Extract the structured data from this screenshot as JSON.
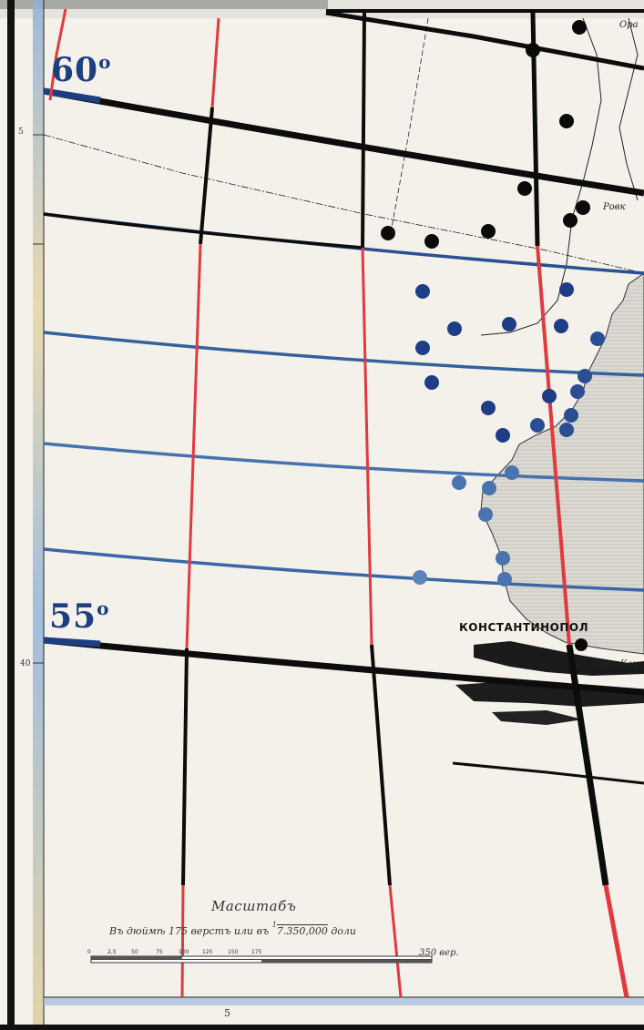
{
  "labels": {
    "lat_60": "60",
    "lat_55": "55",
    "degree": "o",
    "city": "КОНСТАНТИНОПОЛ",
    "strait": "Прол.Кон",
    "corner_top": "Ора",
    "bay": "Ровк",
    "margin_top": "5",
    "margin_mid": "40"
  },
  "scale": {
    "title": "Масштабъ",
    "line_prefix": "Въ дюймѣ 175 верстъ или въ",
    "fraction_num": "1",
    "fraction_den": "7.350,000",
    "line_suffix": "доли",
    "ticks": [
      "0",
      "2,5",
      "50",
      "75",
      "100",
      "125",
      "150",
      "175"
    ],
    "end_value": "350",
    "unit": "вер.",
    "page_number": "5"
  },
  "colors": {
    "paper": "#f4f1ea",
    "land": "#d9d7cf",
    "grid_black": "#0c0c0c",
    "meridian_red": "#e2393f",
    "parallel_blue": "#2a4f93",
    "dot_black": "#0a0a0a",
    "dot_blue": "#1f3d85"
  }
}
